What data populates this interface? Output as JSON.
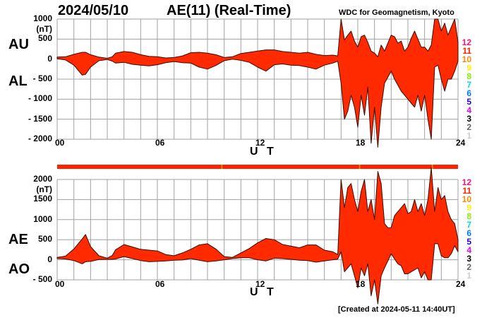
{
  "header": {
    "date": "2024/05/10",
    "title": "AE(11) (Real-Time)",
    "credit": "WDC for Geomagnetism, Kyoto"
  },
  "footer": {
    "created": "[Created at 2024-05-11 14:40UT]"
  },
  "colors": {
    "fill": "#ff2a00",
    "outline": "#3a0a00",
    "grid": "#a0a0a0",
    "status_bar": "#ff2200",
    "status_marker": "#ff9900"
  },
  "top_panel": {
    "label_upper": "AU",
    "label_lower": "AL",
    "unit": "(nT)",
    "yticks": [
      "1000",
      "500",
      "0",
      "- 500",
      "- 1000",
      "- 1500",
      "- 2000"
    ],
    "xticks": [
      "00",
      "06",
      "12",
      "18",
      "24"
    ],
    "xlabel": "U T"
  },
  "bottom_panel": {
    "label_upper": "AE",
    "label_lower": "AO",
    "unit": "(nT)",
    "yticks": [
      "2000",
      "1500",
      "1000",
      "500",
      "0",
      "- 500"
    ],
    "xticks": [
      "00",
      "06",
      "12",
      "18",
      "24"
    ],
    "xlabel": "U T"
  },
  "legend": {
    "items": [
      {
        "label": "12",
        "color": "#ff1177"
      },
      {
        "label": "11",
        "color": "#ff2200"
      },
      {
        "label": "10",
        "color": "#ff8800"
      },
      {
        "label": "9",
        "color": "#ffee00"
      },
      {
        "label": "8",
        "color": "#88ee00"
      },
      {
        "label": "7",
        "color": "#00dddd"
      },
      {
        "label": "6",
        "color": "#0077ff"
      },
      {
        "label": "5",
        "color": "#2200dd"
      },
      {
        "label": "4",
        "color": "#ee00ee"
      },
      {
        "label": "3",
        "color": "#000000"
      },
      {
        "label": "2",
        "color": "#666666"
      },
      {
        "label": "1",
        "color": "#cccccc"
      }
    ]
  },
  "status_bar": {
    "markers_hours": [
      9.85,
      18.1,
      22.45
    ]
  },
  "chart_data": [
    {
      "type": "area",
      "title": "AU / AL",
      "xlabel": "U T",
      "ylabel": "(nT)",
      "xlim": [
        0,
        24
      ],
      "ylim": [
        -2000,
        1000
      ],
      "grid": true,
      "x_hours": [
        0,
        0.5,
        1,
        1.5,
        1.7,
        2,
        2.5,
        3,
        3.3,
        3.5,
        4,
        4.5,
        5,
        5.5,
        6,
        6.5,
        7,
        7.5,
        8,
        8.5,
        9,
        9.5,
        10,
        10.5,
        11,
        11.5,
        12,
        12.5,
        13,
        13.5,
        14,
        14.5,
        15,
        15.5,
        16,
        16.5,
        16.8,
        17,
        17.2,
        17.4,
        17.6,
        17.8,
        18,
        18.2,
        18.4,
        18.6,
        18.8,
        19,
        19.2,
        19.4,
        19.6,
        19.8,
        20,
        20.2,
        20.4,
        20.6,
        20.8,
        21,
        21.2,
        21.4,
        21.6,
        21.8,
        22,
        22.2,
        22.4,
        22.6,
        22.8,
        23,
        23.2,
        23.4,
        23.6,
        23.8,
        24
      ],
      "series": [
        {
          "name": "AU",
          "values": [
            50,
            60,
            120,
            170,
            170,
            110,
            50,
            20,
            60,
            150,
            190,
            170,
            110,
            70,
            60,
            30,
            40,
            80,
            160,
            170,
            150,
            110,
            40,
            60,
            140,
            170,
            200,
            230,
            230,
            190,
            170,
            150,
            170,
            120,
            90,
            100,
            80,
            1000,
            480,
            600,
            700,
            450,
            300,
            560,
            600,
            420,
            200,
            150,
            60,
            350,
            200,
            400,
            600,
            560,
            400,
            450,
            200,
            300,
            520,
            700,
            500,
            300,
            300,
            200,
            350,
            1000,
            1000,
            700,
            900,
            600,
            800,
            1000,
            420
          ]
        },
        {
          "name": "AL",
          "values": [
            10,
            -20,
            -150,
            -400,
            -380,
            -200,
            -40,
            -10,
            -50,
            -100,
            -80,
            -130,
            -150,
            -170,
            -140,
            -90,
            -60,
            -90,
            -100,
            -200,
            -250,
            -160,
            -40,
            0,
            -30,
            -80,
            -200,
            -300,
            -140,
            -120,
            -150,
            -160,
            -200,
            -250,
            -150,
            -100,
            -50,
            -600,
            -1500,
            -1300,
            -900,
            -1200,
            -1700,
            -900,
            -1400,
            -700,
            -2100,
            -1200,
            -2200,
            -1200,
            -600,
            -450,
            -300,
            -500,
            -650,
            -800,
            -900,
            -1000,
            -1100,
            -1200,
            -900,
            -1300,
            -900,
            -1500,
            -2000,
            -200,
            -150,
            -500,
            -800,
            -500,
            -500,
            -300,
            -50
          ]
        }
      ]
    },
    {
      "type": "area",
      "title": "AE / AO",
      "xlabel": "U T",
      "ylabel": "(nT)",
      "xlim": [
        0,
        24
      ],
      "ylim": [
        -500,
        2000
      ],
      "grid": true,
      "x_hours": [
        0,
        0.5,
        1,
        1.5,
        1.7,
        2,
        2.5,
        3,
        3.3,
        3.5,
        4,
        4.5,
        5,
        5.5,
        6,
        6.5,
        7,
        7.5,
        8,
        8.5,
        9,
        9.5,
        10,
        10.5,
        11,
        11.5,
        12,
        12.5,
        13,
        13.5,
        14,
        14.5,
        15,
        15.5,
        16,
        16.5,
        16.8,
        17,
        17.2,
        17.4,
        17.6,
        17.8,
        18,
        18.2,
        18.4,
        18.6,
        18.8,
        19,
        19.2,
        19.4,
        19.6,
        19.8,
        20,
        20.2,
        20.4,
        20.6,
        20.8,
        21,
        21.2,
        21.4,
        21.6,
        21.8,
        22,
        22.2,
        22.4,
        22.6,
        22.8,
        23,
        23.2,
        23.4,
        23.6,
        23.8,
        24
      ],
      "series": [
        {
          "name": "AE",
          "values": [
            60,
            90,
            270,
            520,
            630,
            330,
            100,
            40,
            110,
            250,
            380,
            320,
            260,
            240,
            220,
            130,
            100,
            170,
            260,
            370,
            400,
            270,
            80,
            60,
            170,
            280,
            420,
            530,
            500,
            380,
            340,
            300,
            370,
            370,
            240,
            200,
            130,
            2000,
            1300,
            1800,
            1900,
            1500,
            1200,
            1700,
            2000,
            1200,
            1500,
            1000,
            2200,
            1900,
            900,
            800,
            800,
            1100,
            1200,
            1300,
            1400,
            1150,
            1200,
            1500,
            1200,
            1400,
            1100,
            1500,
            2300,
            1200,
            1800,
            1500,
            1600,
            1200,
            1000,
            900,
            500
          ]
        },
        {
          "name": "AO",
          "values": [
            30,
            20,
            -20,
            -100,
            -50,
            -40,
            5,
            10,
            10,
            20,
            80,
            30,
            -20,
            -50,
            -40,
            -30,
            -10,
            -5,
            30,
            -10,
            -50,
            -30,
            0,
            30,
            50,
            50,
            0,
            -30,
            40,
            30,
            10,
            -10,
            -20,
            -60,
            -30,
            0,
            15,
            200,
            -300,
            -200,
            -100,
            -400,
            -700,
            -200,
            -400,
            -100,
            -900,
            -500,
            -1100,
            -400,
            -200,
            -30,
            150,
            20,
            -100,
            -150,
            -350,
            -350,
            -300,
            -250,
            -200,
            -450,
            -300,
            -500,
            -500,
            400,
            400,
            100,
            50,
            50,
            150,
            350,
            200
          ]
        }
      ]
    }
  ]
}
